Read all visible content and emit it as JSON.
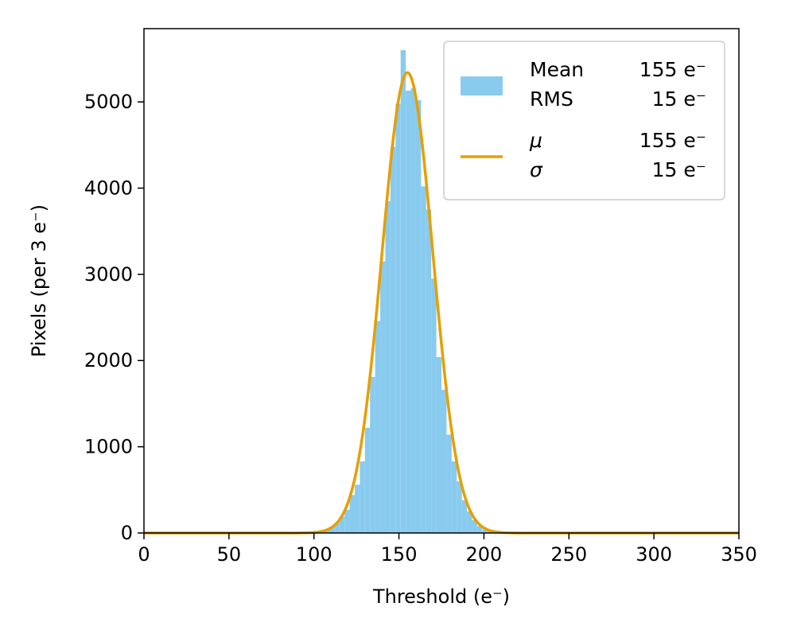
{
  "chart_data": {
    "type": "bar",
    "xlabel": "Threshold (e⁻)",
    "ylabel": "Pixels (per 3 e⁻)",
    "xlim": [
      0,
      350
    ],
    "ylim": [
      0,
      5850
    ],
    "xticks": [
      "0",
      "50",
      "100",
      "150",
      "200",
      "250",
      "300",
      "350"
    ],
    "yticks": [
      "0",
      "1000",
      "2000",
      "3000",
      "4000",
      "5000"
    ],
    "grid": false,
    "legend_position": "top-right",
    "histogram": {
      "name": "Mean 155 e⁻ / RMS 15 e⁻",
      "color": "#89cbef",
      "bin_width": 3,
      "bin_starts": [
        100,
        103,
        106,
        109,
        112,
        115,
        118,
        121,
        124,
        127,
        130,
        133,
        136,
        139,
        142,
        145,
        148,
        151,
        154,
        157,
        160,
        163,
        166,
        169,
        172,
        175,
        178,
        181,
        184,
        187,
        190,
        193,
        196,
        199,
        202,
        205
      ],
      "counts": [
        15,
        25,
        40,
        70,
        120,
        190,
        270,
        440,
        560,
        830,
        1220,
        1810,
        2460,
        3150,
        3850,
        4480,
        4980,
        5600,
        5130,
        5160,
        5020,
        4020,
        3750,
        2950,
        2040,
        1660,
        1140,
        830,
        600,
        380,
        250,
        150,
        80,
        40,
        20,
        10
      ]
    },
    "fit": {
      "name": "μ 155 e⁻ / σ 15 e⁻",
      "color": "#e69f00",
      "type": "gaussian",
      "mu": 155,
      "sigma": 15,
      "amplitude": 5340
    },
    "legend": {
      "hist_label_1": "Mean",
      "hist_value_1": "155 e⁻",
      "hist_label_2": "RMS",
      "hist_value_2": "15 e⁻",
      "fit_label_1": "μ",
      "fit_value_1": "155 e⁻",
      "fit_label_2": "σ",
      "fit_value_2": "15 e⁻"
    }
  }
}
